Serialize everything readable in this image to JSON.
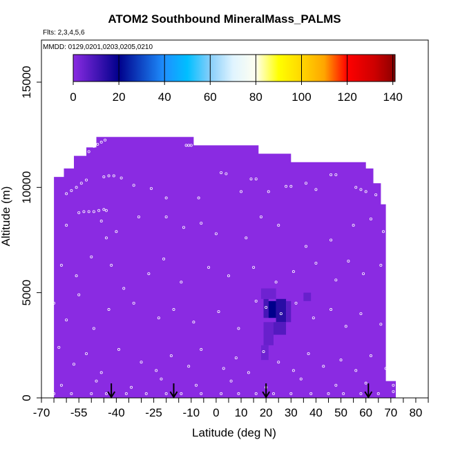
{
  "title": "ATOM2 Southbound MineralMass_PALMS",
  "flights_label": "Flts: 2,3,4,5,6",
  "mmdd_label": "MMDD: 0129,0201,0203,0205,0210",
  "chart_data": {
    "type": "heatmap",
    "title": "ATOM2 Southbound MineralMass_PALMS",
    "xlabel": "Latitude (deg N)",
    "ylabel": "Altitude (m)",
    "xlim": [
      -70,
      85
    ],
    "ylim": [
      0,
      17000
    ],
    "x_ticks": [
      -70,
      -55,
      -40,
      -25,
      -10,
      0,
      10,
      20,
      30,
      40,
      50,
      60,
      70,
      80
    ],
    "x_minor_ticks": [
      -65,
      -60,
      -50,
      -45,
      -35,
      -30,
      -20,
      -15,
      -5,
      5,
      15,
      25,
      35,
      45,
      55,
      65,
      75,
      85
    ],
    "y_ticks": [
      0,
      5000,
      10000,
      15000
    ],
    "colorbar": {
      "range": [
        0,
        141
      ],
      "ticks": [
        0,
        20,
        40,
        60,
        80,
        100,
        120,
        140
      ],
      "stops": [
        {
          "v": 0,
          "c": "#8a2be2"
        },
        {
          "v": 20,
          "c": "#00008b"
        },
        {
          "v": 40,
          "c": "#1e90ff"
        },
        {
          "v": 50,
          "c": "#00bfff"
        },
        {
          "v": 60,
          "c": "#87cefa"
        },
        {
          "v": 70,
          "c": "#e0f4ff"
        },
        {
          "v": 80,
          "c": "#fffff0"
        },
        {
          "v": 90,
          "c": "#ffff00"
        },
        {
          "v": 100,
          "c": "#ffd700"
        },
        {
          "v": 110,
          "c": "#ffa500"
        },
        {
          "v": 120,
          "c": "#ff0000"
        },
        {
          "v": 132,
          "c": "#cd0000"
        },
        {
          "v": 141,
          "c": "#8b0000"
        }
      ]
    },
    "background_value": 1,
    "background_color": "#8a2be2",
    "data_envelope": [
      [
        -65,
        0
      ],
      [
        -65,
        10500
      ],
      [
        -61,
        10500
      ],
      [
        -61,
        10900
      ],
      [
        -57,
        10900
      ],
      [
        -57,
        11500
      ],
      [
        -52,
        11500
      ],
      [
        -52,
        11900
      ],
      [
        -48,
        11900
      ],
      [
        -48,
        12400
      ],
      [
        -9,
        12400
      ],
      [
        -9,
        12000
      ],
      [
        17,
        12000
      ],
      [
        17,
        11600
      ],
      [
        30,
        11600
      ],
      [
        30,
        11200
      ],
      [
        60,
        11200
      ],
      [
        60,
        10900
      ],
      [
        63,
        10900
      ],
      [
        63,
        10200
      ],
      [
        66,
        10200
      ],
      [
        66,
        9200
      ],
      [
        68,
        9200
      ],
      [
        68,
        800
      ],
      [
        72,
        800
      ],
      [
        72,
        0
      ]
    ],
    "enhanced_cells": [
      {
        "x0": 19,
        "x1": 21,
        "y0": 3800,
        "y1": 4700,
        "v": 10
      },
      {
        "x0": 21,
        "x1": 24,
        "y0": 3800,
        "y1": 4600,
        "v": 20
      },
      {
        "x0": 24,
        "x1": 28,
        "y0": 3600,
        "y1": 4700,
        "v": 14
      },
      {
        "x0": 28,
        "x1": 30,
        "y0": 3600,
        "y1": 4600,
        "v": 7
      },
      {
        "x0": 23,
        "x1": 28,
        "y0": 3000,
        "y1": 3600,
        "v": 8
      },
      {
        "x0": 19,
        "x1": 23,
        "y0": 2500,
        "y1": 3600,
        "v": 5
      },
      {
        "x0": 18,
        "x1": 21,
        "y0": 1800,
        "y1": 2500,
        "v": 4
      },
      {
        "x0": 18,
        "x1": 24,
        "y0": 4700,
        "y1": 5200,
        "v": 4
      },
      {
        "x0": 35,
        "x1": 38,
        "y0": 4600,
        "y1": 5000,
        "v": 5
      }
    ],
    "arrows_at_latitude": [
      -42,
      -17,
      20,
      61
    ],
    "observation_points": [
      [
        -49,
        11950
      ],
      [
        -47.5,
        12050
      ],
      [
        -46,
        12150
      ],
      [
        -44.5,
        12250
      ],
      [
        -53,
        11600
      ],
      [
        -51,
        11700
      ],
      [
        -12,
        12000
      ],
      [
        -11,
        12000
      ],
      [
        -10,
        12000
      ],
      [
        -60,
        9700
      ],
      [
        -58,
        9850
      ],
      [
        -56,
        10000
      ],
      [
        -54,
        10200
      ],
      [
        -52,
        10350
      ],
      [
        -45,
        10500
      ],
      [
        -43,
        10550
      ],
      [
        -41,
        10550
      ],
      [
        -38,
        10450
      ],
      [
        -55,
        8800
      ],
      [
        -53,
        8850
      ],
      [
        -51,
        8850
      ],
      [
        -49,
        8850
      ],
      [
        -47,
        8900
      ],
      [
        -45,
        8950
      ],
      [
        -44,
        8900
      ],
      [
        -66,
        9300
      ],
      [
        -60,
        8200
      ],
      [
        -46,
        8400
      ],
      [
        -44,
        7600
      ],
      [
        -40,
        7900
      ],
      [
        -31,
        8600
      ],
      [
        -20,
        8600
      ],
      [
        -13,
        8100
      ],
      [
        -6,
        8300
      ],
      [
        0,
        7800
      ],
      [
        12,
        7600
      ],
      [
        18,
        8600
      ],
      [
        25,
        8200
      ],
      [
        36,
        7200
      ],
      [
        46,
        7500
      ],
      [
        55,
        8200
      ],
      [
        62,
        8500
      ],
      [
        67,
        7900
      ],
      [
        2,
        10700
      ],
      [
        4,
        10650
      ],
      [
        14,
        10400
      ],
      [
        16,
        10400
      ],
      [
        28,
        10050
      ],
      [
        30,
        10050
      ],
      [
        36,
        10200
      ],
      [
        46,
        10600
      ],
      [
        48,
        10600
      ],
      [
        56,
        10000
      ],
      [
        58,
        9900
      ],
      [
        60,
        9800
      ],
      [
        64,
        9650
      ],
      [
        -33,
        10100
      ],
      [
        -26,
        9950
      ],
      [
        -20,
        9500
      ],
      [
        -7,
        9500
      ],
      [
        10,
        9800
      ],
      [
        21,
        9800
      ],
      [
        40,
        9900
      ],
      [
        -66,
        7000
      ],
      [
        -62,
        6300
      ],
      [
        -56,
        5800
      ],
      [
        -50,
        6700
      ],
      [
        -42,
        6300
      ],
      [
        -37,
        5200
      ],
      [
        -27,
        5900
      ],
      [
        -21,
        6600
      ],
      [
        -14,
        5500
      ],
      [
        -3,
        6200
      ],
      [
        5,
        5800
      ],
      [
        15,
        6200
      ],
      [
        24,
        5500
      ],
      [
        31,
        6000
      ],
      [
        40,
        6400
      ],
      [
        48,
        5600
      ],
      [
        53,
        6500
      ],
      [
        59,
        5900
      ],
      [
        66,
        6300
      ],
      [
        -65,
        4500
      ],
      [
        -60,
        3700
      ],
      [
        -55,
        4900
      ],
      [
        -49,
        3300
      ],
      [
        -43,
        4200
      ],
      [
        -33,
        4500
      ],
      [
        -23,
        3800
      ],
      [
        -17,
        4200
      ],
      [
        -9,
        3600
      ],
      [
        1,
        4100
      ],
      [
        9,
        3300
      ],
      [
        16,
        4600
      ],
      [
        20,
        4300
      ],
      [
        26,
        4000
      ],
      [
        32,
        4500
      ],
      [
        39,
        3800
      ],
      [
        46,
        4200
      ],
      [
        52,
        3400
      ],
      [
        58,
        4000
      ],
      [
        66,
        3500
      ],
      [
        -66,
        1500
      ],
      [
        -63,
        2400
      ],
      [
        -57,
        1600
      ],
      [
        -52,
        2100
      ],
      [
        -46,
        1200
      ],
      [
        -39,
        2300
      ],
      [
        -30,
        1700
      ],
      [
        -24,
        1300
      ],
      [
        -18,
        2000
      ],
      [
        -11,
        1500
      ],
      [
        -6,
        2300
      ],
      [
        3,
        1400
      ],
      [
        8,
        1900
      ],
      [
        13,
        1200
      ],
      [
        19,
        2200
      ],
      [
        25,
        1700
      ],
      [
        31,
        1300
      ],
      [
        37,
        2100
      ],
      [
        43,
        1500
      ],
      [
        50,
        1800
      ],
      [
        56,
        1300
      ],
      [
        62,
        2000
      ],
      [
        68,
        1400
      ],
      [
        -65,
        200
      ],
      [
        -58,
        200
      ],
      [
        -50,
        200
      ],
      [
        -44,
        200
      ],
      [
        -36,
        200
      ],
      [
        -28,
        200
      ],
      [
        -20,
        200
      ],
      [
        -14,
        200
      ],
      [
        -6,
        200
      ],
      [
        2,
        200
      ],
      [
        9,
        200
      ],
      [
        16,
        200
      ],
      [
        23,
        200
      ],
      [
        30,
        200
      ],
      [
        38,
        200
      ],
      [
        45,
        200
      ],
      [
        51,
        200
      ],
      [
        58,
        200
      ],
      [
        65,
        200
      ],
      [
        71,
        600
      ],
      [
        71,
        300
      ],
      [
        -62,
        600
      ],
      [
        -48,
        800
      ],
      [
        -34,
        500
      ],
      [
        -22,
        900
      ],
      [
        -8,
        600
      ],
      [
        6,
        800
      ],
      [
        20,
        500
      ],
      [
        34,
        900
      ],
      [
        48,
        600
      ],
      [
        60,
        700
      ]
    ]
  }
}
